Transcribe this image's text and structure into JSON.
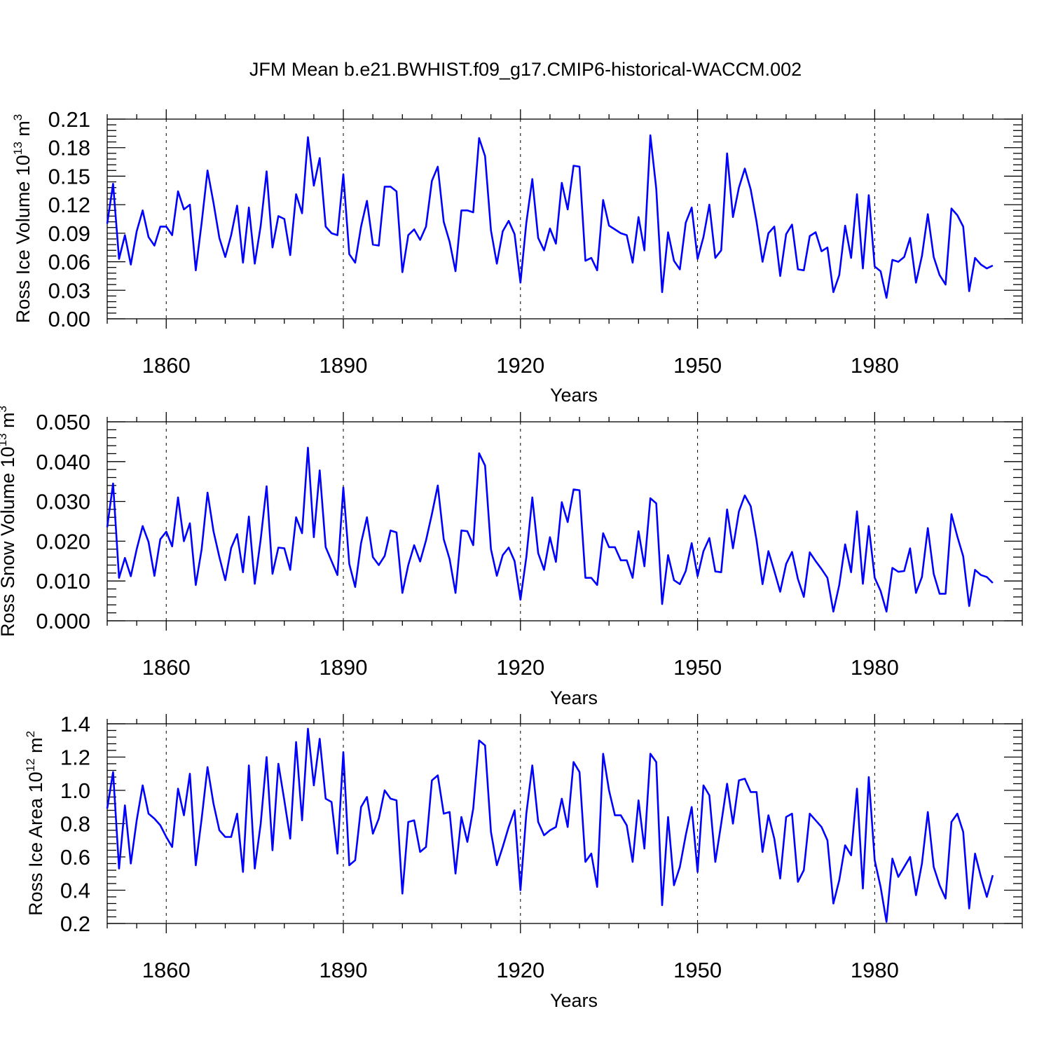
{
  "title": "JFM Mean b.e21.BWHIST.f09_g17.CMIP6-historical-WACCM.002",
  "chart_data": [
    {
      "type": "line",
      "ylabel_main": "Ross Ice Volume 10",
      "ylabel_exp": "13",
      "ylabel_unit": " m",
      "ylabel_unit_exp": "3",
      "xlabel": "Years",
      "xlim": [
        1850,
        2005
      ],
      "xticks": [
        1860,
        1890,
        1920,
        1950,
        1980
      ],
      "xtick_labels": [
        "1860",
        "1890",
        "1920",
        "1950",
        "1980"
      ],
      "ylim": [
        0,
        0.21
      ],
      "yticks": [
        0,
        0.03,
        0.06,
        0.09,
        0.12,
        0.15,
        0.18,
        0.21
      ],
      "ytick_labels": [
        "0.00",
        "0.03",
        "0.06",
        "0.09",
        "0.12",
        "0.15",
        "0.18",
        "0.21"
      ],
      "grid": "dashed vertical at major x ticks",
      "x_start": 1850,
      "series": [
        {
          "name": "Ross Ice Volume",
          "color": "#0000ff",
          "values": [
            0.1,
            0.142,
            0.063,
            0.088,
            0.057,
            0.092,
            0.114,
            0.086,
            0.077,
            0.097,
            0.097,
            0.088,
            0.134,
            0.115,
            0.12,
            0.051,
            0.101,
            0.156,
            0.122,
            0.085,
            0.065,
            0.088,
            0.119,
            0.059,
            0.117,
            0.058,
            0.098,
            0.155,
            0.075,
            0.108,
            0.105,
            0.067,
            0.131,
            0.111,
            0.191,
            0.14,
            0.169,
            0.097,
            0.09,
            0.088,
            0.152,
            0.068,
            0.059,
            0.097,
            0.124,
            0.078,
            0.077,
            0.139,
            0.139,
            0.134,
            0.049,
            0.088,
            0.094,
            0.083,
            0.097,
            0.145,
            0.16,
            0.102,
            0.081,
            0.05,
            0.114,
            0.114,
            0.112,
            0.19,
            0.171,
            0.093,
            0.058,
            0.092,
            0.103,
            0.089,
            0.038,
            0.101,
            0.147,
            0.085,
            0.072,
            0.095,
            0.079,
            0.143,
            0.115,
            0.161,
            0.16,
            0.061,
            0.064,
            0.051,
            0.125,
            0.098,
            0.094,
            0.09,
            0.088,
            0.059,
            0.107,
            0.072,
            0.193,
            0.137,
            0.028,
            0.091,
            0.061,
            0.052,
            0.101,
            0.117,
            0.063,
            0.086,
            0.12,
            0.064,
            0.072,
            0.174,
            0.107,
            0.138,
            0.158,
            0.136,
            0.102,
            0.06,
            0.09,
            0.097,
            0.045,
            0.089,
            0.099,
            0.052,
            0.051,
            0.087,
            0.091,
            0.071,
            0.075,
            0.028,
            0.046,
            0.098,
            0.064,
            0.131,
            0.053,
            0.13,
            0.055,
            0.05,
            0.022,
            0.062,
            0.06,
            0.065,
            0.085,
            0.038,
            0.066,
            0.11,
            0.065,
            0.046,
            0.036,
            0.116,
            0.109,
            0.097,
            0.029,
            0.064,
            0.057,
            0.053,
            0.056
          ]
        }
      ]
    },
    {
      "type": "line",
      "ylabel_main": "Ross Snow Volume 10",
      "ylabel_exp": "13",
      "ylabel_unit": " m",
      "ylabel_unit_exp": "3",
      "xlabel": "Years",
      "xlim": [
        1850,
        2005
      ],
      "xticks": [
        1860,
        1890,
        1920,
        1950,
        1980
      ],
      "xtick_labels": [
        "1860",
        "1890",
        "1920",
        "1950",
        "1980"
      ],
      "ylim": [
        0,
        0.05
      ],
      "yticks": [
        0,
        0.01,
        0.02,
        0.03,
        0.04,
        0.05
      ],
      "ytick_labels": [
        "0.000",
        "0.010",
        "0.020",
        "0.030",
        "0.040",
        "0.050"
      ],
      "grid": "dashed vertical at major x ticks",
      "x_start": 1850,
      "series": [
        {
          "name": "Ross Snow Volume",
          "color": "#0000ff",
          "values": [
            0.0235,
            0.0345,
            0.0108,
            0.0158,
            0.0112,
            0.018,
            0.0238,
            0.0198,
            0.0113,
            0.0205,
            0.0224,
            0.0187,
            0.031,
            0.02,
            0.0245,
            0.009,
            0.018,
            0.0322,
            0.0225,
            0.016,
            0.0102,
            0.0183,
            0.0218,
            0.0122,
            0.0262,
            0.0093,
            0.0205,
            0.0338,
            0.0118,
            0.0184,
            0.0182,
            0.0128,
            0.026,
            0.022,
            0.0435,
            0.021,
            0.0378,
            0.0185,
            0.015,
            0.0115,
            0.0335,
            0.0143,
            0.0085,
            0.0195,
            0.026,
            0.016,
            0.014,
            0.0163,
            0.0227,
            0.0222,
            0.007,
            0.014,
            0.019,
            0.0149,
            0.0202,
            0.0268,
            0.034,
            0.0205,
            0.0155,
            0.007,
            0.0227,
            0.0225,
            0.019,
            0.0421,
            0.039,
            0.018,
            0.0113,
            0.0165,
            0.0184,
            0.015,
            0.0053,
            0.016,
            0.031,
            0.017,
            0.0128,
            0.021,
            0.0148,
            0.0298,
            0.0248,
            0.033,
            0.0328,
            0.0108,
            0.0108,
            0.009,
            0.022,
            0.0185,
            0.0185,
            0.0152,
            0.0152,
            0.0108,
            0.0225,
            0.0137,
            0.0308,
            0.0295,
            0.0042,
            0.0165,
            0.0102,
            0.0092,
            0.0125,
            0.0195,
            0.0112,
            0.0175,
            0.0208,
            0.0124,
            0.0122,
            0.028,
            0.0182,
            0.0275,
            0.0315,
            0.0288,
            0.0202,
            0.0092,
            0.0175,
            0.0125,
            0.0073,
            0.0143,
            0.0173,
            0.0105,
            0.006,
            0.0172,
            0.015,
            0.013,
            0.0108,
            0.0023,
            0.009,
            0.0192,
            0.0122,
            0.0275,
            0.0093,
            0.0238,
            0.0108,
            0.0075,
            0.0023,
            0.0133,
            0.0123,
            0.0125,
            0.0182,
            0.007,
            0.011,
            0.0233,
            0.0118,
            0.0068,
            0.0068,
            0.0268,
            0.0212,
            0.0162,
            0.0037,
            0.0128,
            0.0115,
            0.011,
            0.0095
          ]
        }
      ]
    },
    {
      "type": "line",
      "ylabel_main": "Ross Ice Area 10",
      "ylabel_exp": "12",
      "ylabel_unit": " m",
      "ylabel_unit_exp": "2",
      "xlabel": "Years",
      "xlim": [
        1850,
        2005
      ],
      "xticks": [
        1860,
        1890,
        1920,
        1950,
        1980
      ],
      "xtick_labels": [
        "1860",
        "1890",
        "1920",
        "1950",
        "1980"
      ],
      "ylim": [
        0.2,
        1.4
      ],
      "yticks": [
        0.2,
        0.4,
        0.6,
        0.8,
        1.0,
        1.2,
        1.4
      ],
      "ytick_labels": [
        "0.2",
        "0.4",
        "0.6",
        "0.8",
        "1.0",
        "1.2",
        "1.4"
      ],
      "grid": "dashed vertical at major x ticks",
      "x_start": 1850,
      "series": [
        {
          "name": "Ross Ice Area",
          "color": "#0000ff",
          "values": [
            0.89,
            1.11,
            0.53,
            0.91,
            0.56,
            0.82,
            1.03,
            0.86,
            0.83,
            0.79,
            0.72,
            0.66,
            1.01,
            0.85,
            1.1,
            0.55,
            0.83,
            1.14,
            0.92,
            0.76,
            0.72,
            0.72,
            0.86,
            0.51,
            1.15,
            0.53,
            0.8,
            1.2,
            0.64,
            1.16,
            0.94,
            0.71,
            1.29,
            0.82,
            1.37,
            1.03,
            1.31,
            0.95,
            0.93,
            0.62,
            1.23,
            0.55,
            0.58,
            0.9,
            0.96,
            0.74,
            0.83,
            1.0,
            0.95,
            0.94,
            0.38,
            0.81,
            0.82,
            0.63,
            0.66,
            1.06,
            1.09,
            0.86,
            0.87,
            0.5,
            0.84,
            0.69,
            0.89,
            1.3,
            1.27,
            0.75,
            0.55,
            0.66,
            0.78,
            0.88,
            0.4,
            0.86,
            1.15,
            0.81,
            0.73,
            0.76,
            0.78,
            0.95,
            0.78,
            1.17,
            1.11,
            0.57,
            0.62,
            0.42,
            1.22,
            1.0,
            0.85,
            0.85,
            0.79,
            0.57,
            0.94,
            0.65,
            1.22,
            1.17,
            0.31,
            0.84,
            0.43,
            0.54,
            0.73,
            0.9,
            0.51,
            1.03,
            0.97,
            0.57,
            0.8,
            1.04,
            0.8,
            1.06,
            1.07,
            0.99,
            0.99,
            0.63,
            0.85,
            0.71,
            0.47,
            0.84,
            0.86,
            0.45,
            0.52,
            0.86,
            0.82,
            0.78,
            0.7,
            0.32,
            0.46,
            0.67,
            0.61,
            1.01,
            0.41,
            1.08,
            0.58,
            0.42,
            0.21,
            0.59,
            0.48,
            0.54,
            0.6,
            0.37,
            0.56,
            0.87,
            0.54,
            0.43,
            0.35,
            0.81,
            0.86,
            0.75,
            0.29,
            0.62,
            0.48,
            0.36,
            0.49
          ]
        }
      ]
    }
  ]
}
